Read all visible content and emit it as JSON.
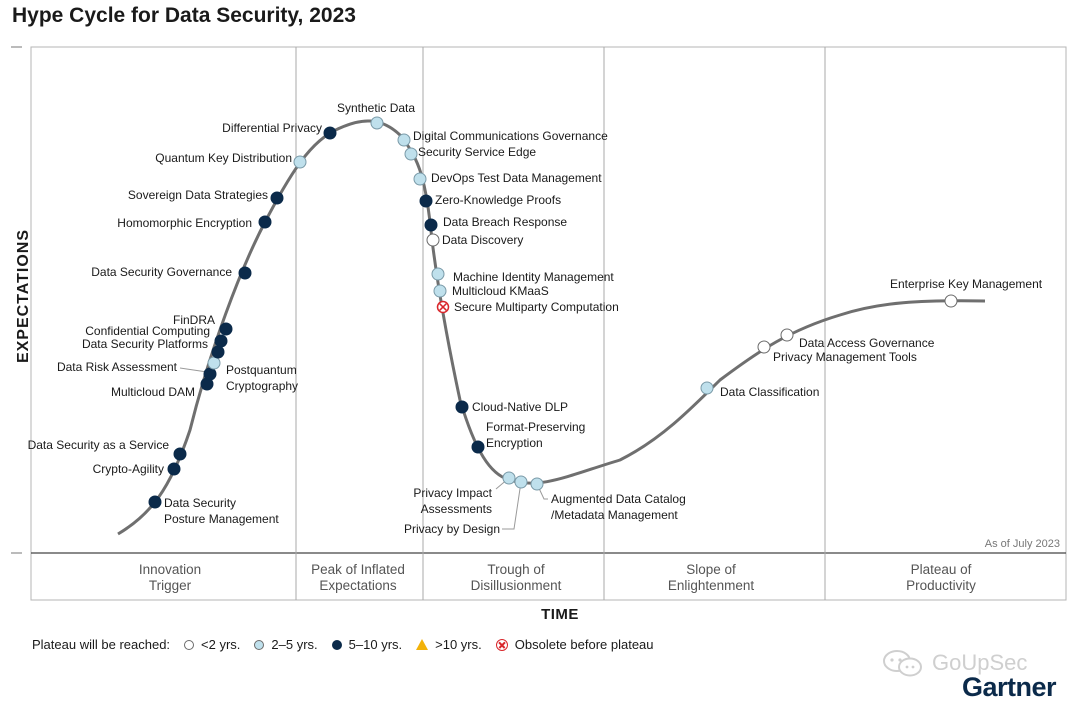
{
  "title": "Hype Cycle for Data Security, 2023",
  "y_axis_label": "EXPECTATIONS",
  "x_axis_label": "TIME",
  "as_of": "As of July 2023",
  "colors": {
    "lt2": "#ffffff",
    "2to5": "#bfe0ec",
    "5to10": "#0b2a4a",
    "gt10": "#f2b20a",
    "obsolete": "#d9262b",
    "curve": "#6f6f6f"
  },
  "chart_data": {
    "type": "scatter",
    "title": "Hype Cycle for Data Security, 2023",
    "xlabel": "TIME",
    "ylabel": "EXPECTATIONS",
    "phases": [
      {
        "id": "innovation",
        "lines": [
          "Innovation",
          "Trigger"
        ]
      },
      {
        "id": "peak",
        "lines": [
          "Peak of Inflated",
          "Expectations"
        ]
      },
      {
        "id": "trough",
        "lines": [
          "Trough of",
          "Disillusionment"
        ]
      },
      {
        "id": "slope",
        "lines": [
          "Slope of",
          "Enlightenment"
        ]
      },
      {
        "id": "plateau",
        "lines": [
          "Plateau of",
          "Productivity"
        ]
      }
    ],
    "points": [
      {
        "name": "Data Security Posture Management",
        "lines": [
          "Data Security",
          "Posture Management"
        ],
        "phase": "Innovation Trigger",
        "plateau": "5-10"
      },
      {
        "name": "Crypto-Agility",
        "lines": [
          "Crypto-Agility"
        ],
        "phase": "Innovation Trigger",
        "plateau": "5-10"
      },
      {
        "name": "Data Security as a Service",
        "lines": [
          "Data Security as a Service"
        ],
        "phase": "Innovation Trigger",
        "plateau": "5-10"
      },
      {
        "name": "Multicloud DAM",
        "lines": [
          "Multicloud DAM"
        ],
        "phase": "Innovation Trigger",
        "plateau": "5-10"
      },
      {
        "name": "Data Risk Assessment",
        "lines": [
          "Data Risk Assessment"
        ],
        "phase": "Innovation Trigger",
        "plateau": "5-10"
      },
      {
        "name": "Postquantum Cryptography",
        "lines": [
          "Postquantum",
          "Cryptography"
        ],
        "phase": "Innovation Trigger",
        "plateau": "2-5"
      },
      {
        "name": "Data Security Platforms",
        "lines": [
          "Data Security Platforms"
        ],
        "phase": "Innovation Trigger",
        "plateau": "5-10"
      },
      {
        "name": "Confidential Computing",
        "lines": [
          "Confidential Computing"
        ],
        "phase": "Innovation Trigger",
        "plateau": "5-10"
      },
      {
        "name": "FinDRA",
        "lines": [
          "FinDRA"
        ],
        "phase": "Innovation Trigger",
        "plateau": "5-10"
      },
      {
        "name": "Data Security Governance",
        "lines": [
          "Data Security Governance"
        ],
        "phase": "Innovation Trigger",
        "plateau": "5-10"
      },
      {
        "name": "Homomorphic Encryption",
        "lines": [
          "Homomorphic Encryption"
        ],
        "phase": "Innovation Trigger",
        "plateau": "5-10"
      },
      {
        "name": "Sovereign Data Strategies",
        "lines": [
          "Sovereign Data Strategies"
        ],
        "phase": "Innovation Trigger",
        "plateau": "5-10"
      },
      {
        "name": "Quantum Key Distribution",
        "lines": [
          "Quantum Key Distribution"
        ],
        "phase": "Peak of Inflated Expectations",
        "plateau": "2-5"
      },
      {
        "name": "Differential Privacy",
        "lines": [
          "Differential Privacy"
        ],
        "phase": "Peak of Inflated Expectations",
        "plateau": "5-10"
      },
      {
        "name": "Synthetic Data",
        "lines": [
          "Synthetic Data"
        ],
        "phase": "Peak of Inflated Expectations",
        "plateau": "2-5"
      },
      {
        "name": "Digital Communications Governance",
        "lines": [
          "Digital Communications Governance"
        ],
        "phase": "Peak of Inflated Expectations",
        "plateau": "2-5"
      },
      {
        "name": "Security Service Edge",
        "lines": [
          "Security Service Edge"
        ],
        "phase": "Peak of Inflated Expectations",
        "plateau": "2-5"
      },
      {
        "name": "DevOps Test Data Management",
        "lines": [
          "DevOps Test Data Management"
        ],
        "phase": "Trough of Disillusionment",
        "plateau": "2-5"
      },
      {
        "name": "Zero-Knowledge Proofs",
        "lines": [
          "Zero-Knowledge Proofs"
        ],
        "phase": "Trough of Disillusionment",
        "plateau": "5-10"
      },
      {
        "name": "Data Breach Response",
        "lines": [
          "Data Breach Response"
        ],
        "phase": "Trough of Disillusionment",
        "plateau": "5-10"
      },
      {
        "name": "Data Discovery",
        "lines": [
          "Data Discovery"
        ],
        "phase": "Trough of Disillusionment",
        "plateau": "<2"
      },
      {
        "name": "Machine Identity Management",
        "lines": [
          "Machine Identity Management"
        ],
        "phase": "Trough of Disillusionment",
        "plateau": "2-5"
      },
      {
        "name": "Multicloud KMaaS",
        "lines": [
          "Multicloud KMaaS"
        ],
        "phase": "Trough of Disillusionment",
        "plateau": "2-5"
      },
      {
        "name": "Secure Multiparty Computation",
        "lines": [
          "Secure Multiparty Computation"
        ],
        "phase": "Trough of Disillusionment",
        "plateau": "obsolete"
      },
      {
        "name": "Cloud-Native DLP",
        "lines": [
          "Cloud-Native DLP"
        ],
        "phase": "Trough of Disillusionment",
        "plateau": "5-10"
      },
      {
        "name": "Format-Preserving Encryption",
        "lines": [
          "Format-Preserving",
          "Encryption"
        ],
        "phase": "Trough of Disillusionment",
        "plateau": "5-10"
      },
      {
        "name": "Privacy Impact Assessments",
        "lines": [
          "Privacy Impact",
          "Assessments"
        ],
        "phase": "Trough of Disillusionment",
        "plateau": "2-5"
      },
      {
        "name": "Privacy by Design",
        "lines": [
          "Privacy by Design"
        ],
        "phase": "Trough of Disillusionment",
        "plateau": "2-5"
      },
      {
        "name": "Augmented Data Catalog/Metadata Management",
        "lines": [
          "Augmented Data Catalog",
          "/Metadata Management"
        ],
        "phase": "Trough of Disillusionment",
        "plateau": "2-5"
      },
      {
        "name": "Data Classification",
        "lines": [
          "Data Classification"
        ],
        "phase": "Slope of Enlightenment",
        "plateau": "2-5"
      },
      {
        "name": "Privacy Management Tools",
        "lines": [
          "Privacy Management Tools"
        ],
        "phase": "Slope of Enlightenment",
        "plateau": "<2"
      },
      {
        "name": "Data Access Governance",
        "lines": [
          "Data Access Governance"
        ],
        "phase": "Slope of Enlightenment",
        "plateau": "<2"
      },
      {
        "name": "Enterprise Key Management",
        "lines": [
          "Enterprise Key Management"
        ],
        "phase": "Plateau of Productivity",
        "plateau": "<2"
      }
    ]
  },
  "legend": {
    "title": "Plateau will be reached:",
    "items": [
      {
        "key": "<2",
        "label": "<2 yrs."
      },
      {
        "key": "2-5",
        "label": "2–5 yrs."
      },
      {
        "key": "5-10",
        "label": "5–10 yrs."
      },
      {
        "key": "gt10",
        "label": ">10 yrs."
      },
      {
        "key": "obsolete",
        "label": "Obsolete before plateau"
      }
    ]
  },
  "watermark": "GoUpSec",
  "brand": "Gartner"
}
